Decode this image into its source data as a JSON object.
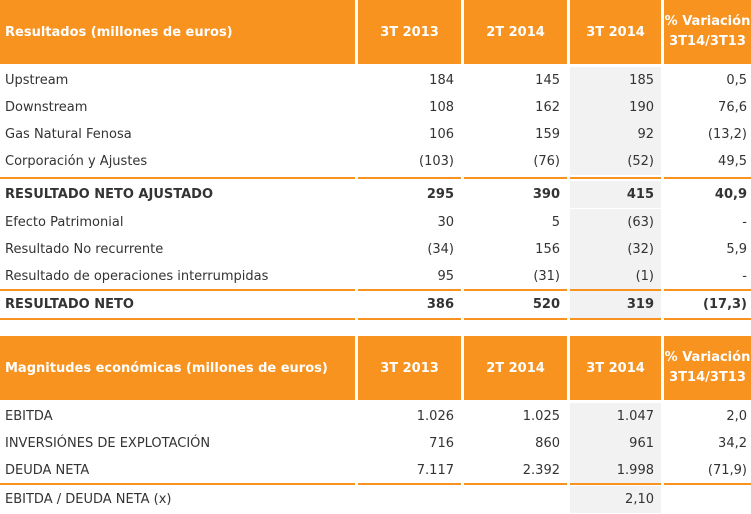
{
  "table1": {
    "title": "Resultados (millones de euros)",
    "columns": [
      "3T 2013",
      "2T 2014",
      "3T 2014",
      "% Variación 3T14/3T13"
    ],
    "col4_line1": "% Variación",
    "col4_line2": "3T14/3T13",
    "rows": [
      {
        "label": "Upstream",
        "v": [
          "184",
          "145",
          "185",
          "0,5"
        ]
      },
      {
        "label": "Downstream",
        "v": [
          "108",
          "162",
          "190",
          "76,6"
        ]
      },
      {
        "label": "Gas Natural Fenosa",
        "v": [
          "106",
          "159",
          "92",
          "(13,2)"
        ]
      },
      {
        "label": "Corporación y Ajustes",
        "v": [
          "(103)",
          "(76)",
          "(52)",
          "49,5"
        ]
      },
      {
        "label": "RESULTADO NETO AJUSTADO",
        "v": [
          "295",
          "390",
          "415",
          "40,9"
        ]
      },
      {
        "label": "Efecto Patrimonial",
        "v": [
          "30",
          "5",
          "(63)",
          "-"
        ]
      },
      {
        "label": "Resultado No recurrente",
        "v": [
          "(34)",
          "156",
          "(32)",
          "5,9"
        ]
      },
      {
        "label": "Resultado de operaciones interrumpidas",
        "v": [
          "95",
          "(31)",
          "(1)",
          "-"
        ]
      },
      {
        "label": "RESULTADO NETO",
        "v": [
          "386",
          "520",
          "319",
          "(17,3)"
        ]
      }
    ]
  },
  "table2": {
    "title": "Magnitudes económicas (millones de euros)",
    "columns": [
      "3T 2013",
      "2T 2014",
      "3T 2014",
      "% Variación 3T14/3T13"
    ],
    "col4_line1": "% Variación",
    "col4_line2": "3T14/3T13",
    "rows": [
      {
        "label": "EBITDA",
        "v": [
          "1.026",
          "1.025",
          "1.047",
          "2,0"
        ]
      },
      {
        "label": "INVERSIÓNES DE EXPLOTACIÓN",
        "v": [
          "716",
          "860",
          "961",
          "34,2"
        ]
      },
      {
        "label": "DEUDA NETA",
        "v": [
          "7.117",
          "2.392",
          "1.998",
          "(71,9)"
        ]
      },
      {
        "label": "EBITDA / DEUDA NETA (x)",
        "v": [
          "",
          "",
          "2,10",
          ""
        ]
      }
    ]
  }
}
